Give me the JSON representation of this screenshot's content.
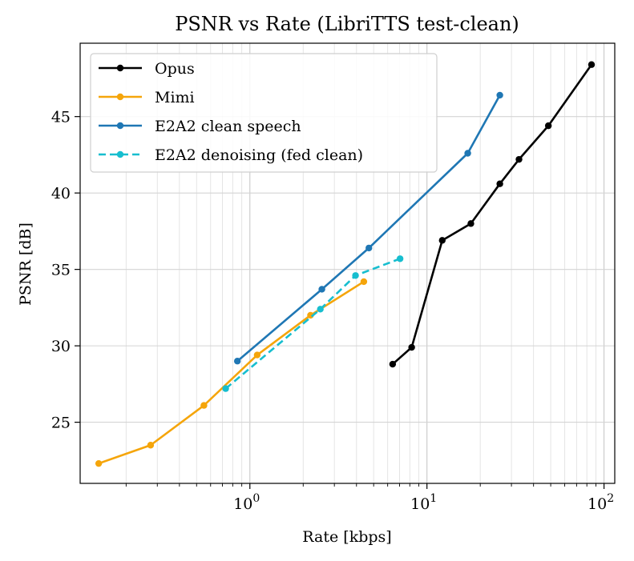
{
  "chart_data": {
    "type": "line",
    "title": "PSNR vs Rate (LibriTTS test-clean)",
    "xlabel": "Rate [kbps]",
    "ylabel": "PSNR [dB]",
    "xscale": "log",
    "xlim": [
      0.11,
      115
    ],
    "ylim": [
      21.0,
      49.8
    ],
    "x_ticks": [
      {
        "value": 1,
        "base": "10",
        "exp": "0"
      },
      {
        "value": 10,
        "base": "10",
        "exp": "1"
      },
      {
        "value": 100,
        "base": "10",
        "exp": "2"
      }
    ],
    "y_ticks": [
      {
        "value": 25,
        "label": "25"
      },
      {
        "value": 30,
        "label": "30"
      },
      {
        "value": 35,
        "label": "35"
      },
      {
        "value": 40,
        "label": "40"
      },
      {
        "value": 45,
        "label": "45"
      }
    ],
    "grid": true,
    "legend_position": "top-left",
    "series": [
      {
        "name": "Opus",
        "color": "#000000",
        "dash": "solid",
        "x": [
          6.4,
          8.2,
          12.2,
          17.7,
          25.8,
          33.1,
          48.5,
          85.0
        ],
        "y": [
          28.8,
          29.9,
          36.9,
          38.0,
          40.6,
          42.2,
          44.4,
          48.4
        ]
      },
      {
        "name": "Mimi",
        "color": "#f5a50a",
        "dash": "solid",
        "x": [
          0.14,
          0.275,
          0.55,
          1.1,
          2.2,
          4.4
        ],
        "y": [
          22.3,
          23.5,
          26.1,
          29.4,
          32.0,
          34.2
        ]
      },
      {
        "name": "E2A2 clean speech",
        "color": "#1f77b4",
        "dash": "solid",
        "x": [
          0.85,
          2.55,
          4.7,
          17.0,
          25.8
        ],
        "y": [
          29.0,
          33.7,
          36.4,
          42.6,
          46.4
        ]
      },
      {
        "name": "E2A2 denoising (fed clean)",
        "color": "#17becf",
        "dash": "dashed",
        "x": [
          0.73,
          2.5,
          3.95,
          7.05
        ],
        "y": [
          27.2,
          32.4,
          34.6,
          35.7
        ]
      }
    ]
  }
}
